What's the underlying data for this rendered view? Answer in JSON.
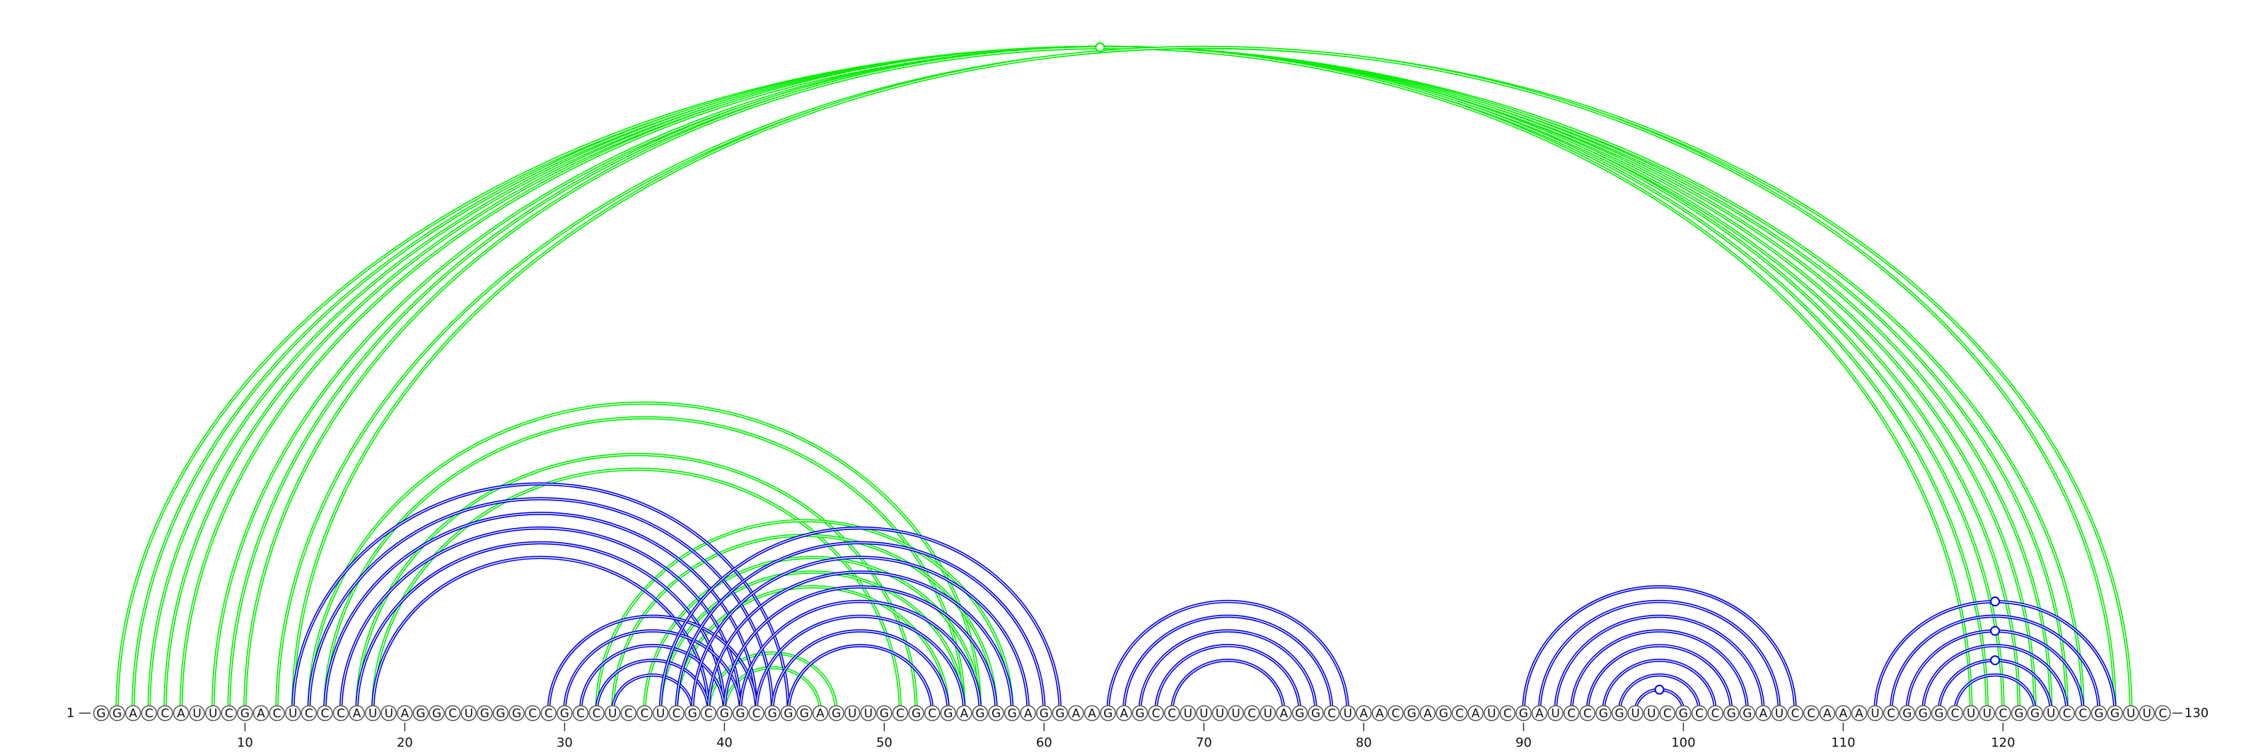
{
  "diagram": {
    "sequence": "GGACCAUUCGACUCCCAUUAGGCUGGGCCGCCUCCUCGCGGCGGGAGUUGCGCGAGGGAGGAAGAGCCUUUUCUAGGCUAACGAGCAUCGAUCCGGUUCGCCGGAUCCAAAUCGGGCUUCGGUCCGGUUC",
    "start_label": "1",
    "end_label": "130",
    "position_ticks": [
      10,
      20,
      30,
      40,
      50,
      60,
      70,
      80,
      90,
      100,
      110,
      120
    ],
    "colors": {
      "blue": "#0000ee",
      "green": "#00ee00"
    },
    "helices": [
      {
        "color": "green",
        "pairs": [
          [
            2,
            125
          ],
          [
            3,
            124
          ],
          [
            4,
            123
          ],
          [
            5,
            122
          ],
          [
            6,
            121
          ],
          [
            8,
            120
          ],
          [
            9,
            119
          ],
          [
            10,
            118
          ],
          [
            12,
            128
          ],
          [
            13,
            127
          ]
        ]
      },
      {
        "color": "green",
        "pairs": [
          [
            14,
            56
          ],
          [
            15,
            55
          ],
          [
            17,
            52
          ],
          [
            18,
            51
          ]
        ]
      },
      {
        "color": "green",
        "pairs": [
          [
            32,
            58
          ],
          [
            33,
            57
          ],
          [
            35,
            56
          ],
          [
            36,
            55
          ],
          [
            37,
            54
          ]
        ]
      },
      {
        "color": "green",
        "pairs": [
          [
            39,
            47
          ],
          [
            40,
            46
          ]
        ]
      },
      {
        "color": "blue",
        "pairs": [
          [
            13,
            44
          ],
          [
            14,
            43
          ],
          [
            15,
            42
          ],
          [
            16,
            41
          ],
          [
            17,
            40
          ],
          [
            18,
            39
          ]
        ]
      },
      {
        "color": "blue",
        "pairs": [
          [
            29,
            42
          ],
          [
            30,
            41
          ],
          [
            31,
            40
          ],
          [
            32,
            39
          ],
          [
            33,
            38
          ]
        ]
      },
      {
        "color": "blue",
        "pairs": [
          [
            36,
            61
          ],
          [
            37,
            60
          ],
          [
            38,
            59
          ],
          [
            39,
            58
          ],
          [
            40,
            57
          ],
          [
            41,
            56
          ],
          [
            42,
            55
          ],
          [
            43,
            54
          ],
          [
            44,
            53
          ]
        ]
      },
      {
        "color": "blue",
        "pairs": [
          [
            64,
            79
          ],
          [
            65,
            78
          ],
          [
            66,
            77
          ],
          [
            67,
            76
          ],
          [
            68,
            75
          ]
        ]
      },
      {
        "color": "blue",
        "pairs": [
          [
            90,
            107
          ],
          [
            91,
            106
          ],
          [
            92,
            105
          ],
          [
            93,
            104
          ],
          [
            94,
            103
          ],
          [
            95,
            102
          ],
          [
            96,
            101
          ],
          [
            97,
            100
          ]
        ]
      },
      {
        "color": "blue",
        "pairs": [
          [
            112,
            127
          ],
          [
            113,
            126
          ],
          [
            114,
            125
          ],
          [
            115,
            124
          ],
          [
            116,
            123
          ],
          [
            117,
            122
          ]
        ]
      }
    ],
    "markers": [
      {
        "color": "green",
        "arc": [
          2,
          125
        ]
      },
      {
        "color": "blue",
        "arc": [
          97,
          100
        ]
      },
      {
        "color": "blue",
        "arc": [
          112,
          127
        ]
      },
      {
        "color": "blue",
        "arc": [
          114,
          125
        ]
      },
      {
        "color": "blue",
        "arc": [
          116,
          123
        ]
      }
    ]
  }
}
